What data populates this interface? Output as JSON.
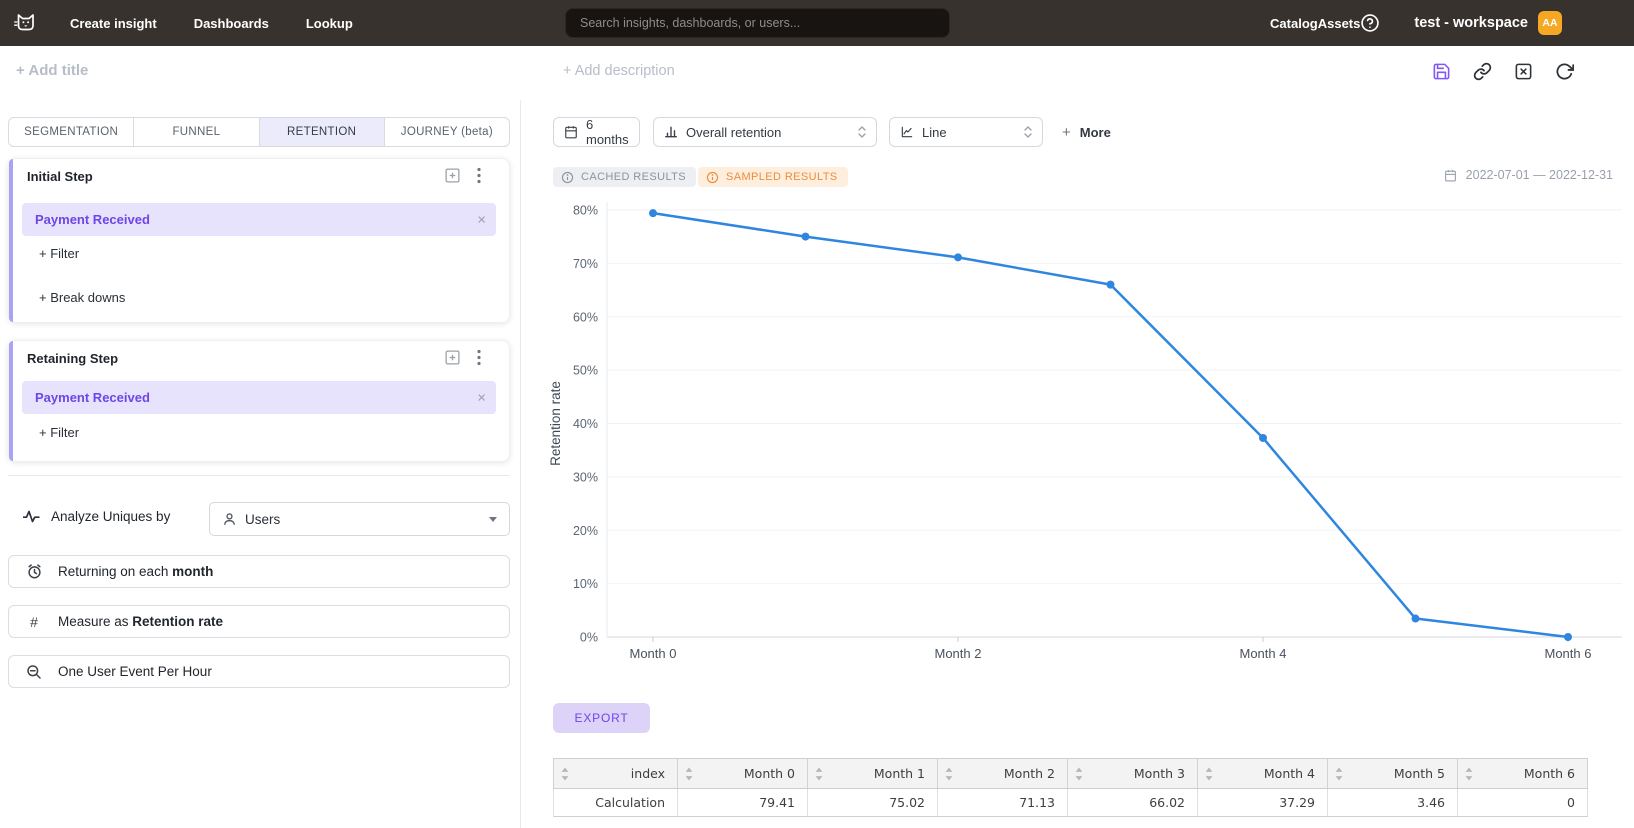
{
  "navbar": {
    "links": [
      "Create insight",
      "Dashboards",
      "Lookup"
    ],
    "search_placeholder": "Search insights, dashboards, or users...",
    "right_links": [
      "Catalog",
      "Assets"
    ],
    "workspace_name": "test - workspace",
    "avatar_initials": "AA"
  },
  "title_bar": {
    "add_title": "+ Add title",
    "add_description": "+ Add description"
  },
  "sidebar": {
    "tabs": [
      {
        "label": "SEGMENTATION",
        "active": false
      },
      {
        "label": "FUNNEL",
        "active": false
      },
      {
        "label": "RETENTION",
        "active": true
      },
      {
        "label": "JOURNEY (beta)",
        "active": false
      }
    ],
    "initial_step": {
      "title": "Initial Step",
      "event": "Payment Received",
      "remove": "×",
      "filter_label": "+ Filter",
      "breakdown_label": "+ Break downs"
    },
    "retaining_step": {
      "title": "Retaining Step",
      "event": "Payment Received",
      "remove": "×",
      "filter_label": "+ Filter"
    },
    "analyze": {
      "label": "Analyze Uniques by",
      "value": "Users"
    },
    "returning_row": {
      "prefix": "Returning on each ",
      "bold": "month"
    },
    "measure_row": {
      "prefix": "Measure as ",
      "bold": "Retention rate"
    },
    "event_rate_row": {
      "label": "One User Event Per Hour"
    },
    "hash_glyph": "#"
  },
  "toolbar": {
    "date_window": "6 months",
    "retention_type": "Overall retention",
    "chart_type": "Line",
    "plus": "+",
    "more_label": "More"
  },
  "status": {
    "cached_label": "CACHED RESULTS",
    "sampled_label": "SAMPLED RESULTS",
    "date_range": "2022-07-01 — 2022-12-31"
  },
  "chart_data": {
    "type": "line",
    "categories": [
      "Month 0",
      "Month 1",
      "Month 2",
      "Month 3",
      "Month 4",
      "Month 5",
      "Month 6"
    ],
    "values": [
      79.41,
      75.02,
      71.13,
      66.02,
      37.29,
      3.46,
      0
    ],
    "title": "",
    "xlabel": "",
    "ylabel": "Retention rate",
    "ylim": [
      0,
      80
    ],
    "y_tick_step": 10,
    "y_tick_suffix": "%",
    "x_label_every": 2,
    "grid": true,
    "legend": "none",
    "line_color": "#2e86de"
  },
  "export_label": "EXPORT",
  "table": {
    "headers": [
      "index",
      "Month 0",
      "Month 1",
      "Month 2",
      "Month 3",
      "Month 4",
      "Month 5",
      "Month 6"
    ],
    "rows": [
      [
        "Calculation",
        "79.41",
        "75.02",
        "71.13",
        "66.02",
        "37.29",
        "3.46",
        "0"
      ]
    ]
  },
  "colors": {
    "accent": "#6d45e8",
    "accent_bg": "#e8e3fc",
    "line": "#2e86de",
    "navbar_bg": "#37322e",
    "avatar_bg": "#f6a723",
    "badge_orange": "#ee8c3d"
  }
}
